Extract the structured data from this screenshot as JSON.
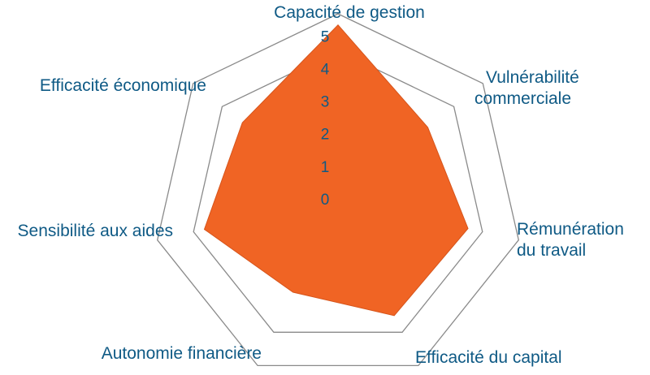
{
  "chart_data": {
    "type": "radar",
    "axes": [
      "Capacité de gestion",
      "Vulnérabilité commerciale",
      "Rémunération du travail",
      "Efficacité du capital",
      "Autonomie financière",
      "Sensibilité aux aides",
      "Efficacité économique"
    ],
    "label_lines": [
      [
        "Capacité de gestion"
      ],
      [
        "Vulnérabilité",
        "commerciale"
      ],
      [
        "Rémunération",
        "du travail"
      ],
      [
        "Efficacité du capital"
      ],
      [
        "Autonomie financière"
      ],
      [
        "Sensibilité aux aides"
      ],
      [
        "Efficacité économique"
      ]
    ],
    "values": [
      4.7,
      3.1,
      3.6,
      3.5,
      2.8,
      3.7,
      3.3
    ],
    "ticks": [
      "0",
      "1",
      "2",
      "3",
      "4",
      "5"
    ],
    "rmin": 0,
    "rmax": 5,
    "rings_drawn": [
      4,
      5
    ],
    "fill_color": "#f06424",
    "ring_color": "#8a8a8a",
    "label_color": "#0f5a85"
  }
}
